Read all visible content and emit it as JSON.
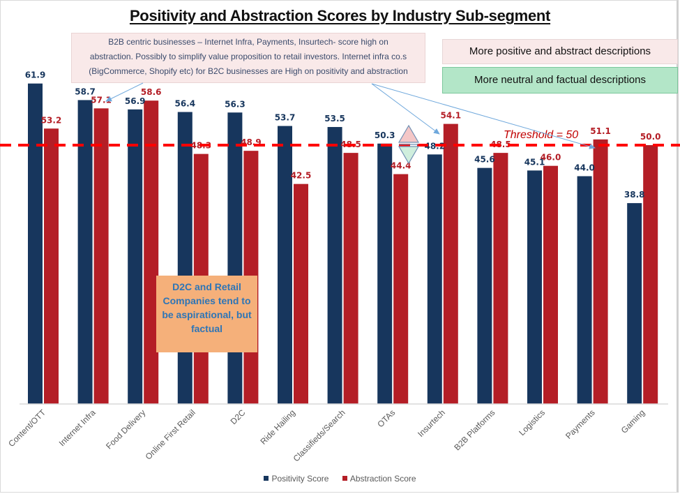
{
  "chart_data": {
    "type": "bar",
    "title": "Positivity and Abstraction Scores by Industry Sub-segment",
    "xlabel": "",
    "ylabel": "",
    "ylim": [
      0,
      62
    ],
    "grid": false,
    "legend_position": "bottom",
    "categories": [
      "Content/OTT",
      "Internet Infra",
      "Food Delivery",
      "Online First Retail",
      "D2C",
      "Ride Hailing",
      "Classifieds/Search",
      "OTAs",
      "Insurtech",
      "B2B Platforms",
      "Logistics",
      "Payments",
      "Gaming"
    ],
    "series": [
      {
        "name": "Positivity Score",
        "color": "#17365d",
        "label_color": "#17365d",
        "values": [
          61.9,
          58.7,
          56.9,
          56.4,
          56.3,
          53.7,
          53.5,
          50.3,
          48.2,
          45.6,
          45.1,
          44.0,
          38.8
        ]
      },
      {
        "name": "Abstraction Score",
        "color": "#b41e26",
        "label_color": "#b41e26",
        "values": [
          53.2,
          57.1,
          58.6,
          48.3,
          48.9,
          42.5,
          48.5,
          44.4,
          54.1,
          48.5,
          46.0,
          51.1,
          50.0
        ]
      }
    ],
    "threshold": {
      "value": 50,
      "label": "Threshold = 50",
      "color": "#ff0000"
    },
    "annotations": [
      {
        "text": "B2B centric businesses – Internet Infra, Payments, Insurtech- score high on abstraction. Possibly to simplify value proposition to retail investors. Internet infra co.s (BigCommerce, Shopify etc) for B2C businesses are High on positivity and abstraction",
        "points_to": [
          "Internet Infra",
          "Insurtech",
          "Payments"
        ]
      },
      {
        "text": "D2C and Retail Companies tend to be aspirational, but factual"
      }
    ]
  },
  "notes": {
    "top_box_lines": [
      "B2B centric businesses – Internet Infra, Payments, Insurtech- score high on",
      "abstraction. Possibly to simplify value proposition to retail investors. Internet infra co.s",
      "(BigCommerce, Shopify etc) for B2C businesses are High on positivity and abstraction"
    ],
    "callout_lines": [
      "D2C and Retail",
      "Companies tend to",
      "be aspirational, but",
      "factual"
    ]
  },
  "key": {
    "positive_label": "More positive and abstract descriptions",
    "positive_color": "#f9e9e9",
    "neutral_label": "More neutral and factual descriptions",
    "neutral_color": "#b3e6c8"
  }
}
